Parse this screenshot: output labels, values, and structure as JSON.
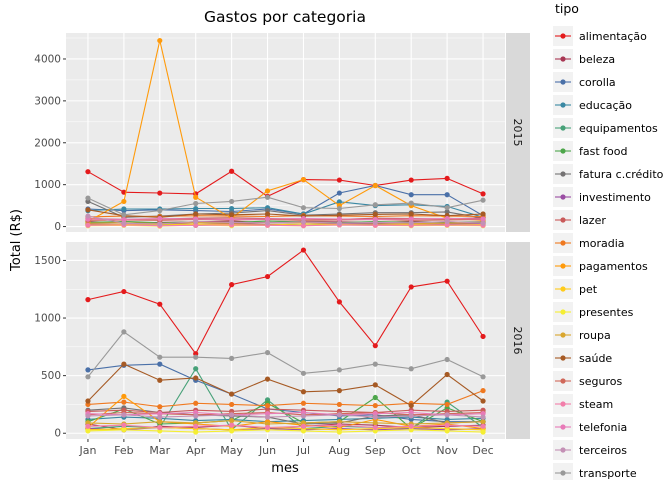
{
  "chart_data": {
    "type": "line",
    "title": "Gastos por categoria",
    "xlabel": "mes",
    "ylabel": "Total (R$)",
    "categories": [
      "Jan",
      "Feb",
      "Mar",
      "Apr",
      "May",
      "Jun",
      "Jul",
      "Aug",
      "Sep",
      "Oct",
      "Nov",
      "Dec"
    ],
    "legend": {
      "title": "tipo",
      "position": "right",
      "entries": [
        {
          "name": "alimentação",
          "color": "#e41a1c"
        },
        {
          "name": "beleza",
          "color": "#a83653"
        },
        {
          "name": "corolla",
          "color": "#4a70a8"
        },
        {
          "name": "educação",
          "color": "#3a88a3"
        },
        {
          "name": "equipamentos",
          "color": "#47a178"
        },
        {
          "name": "fast food",
          "color": "#4da64a"
        },
        {
          "name": "fatura c.crédito",
          "color": "#747273"
        },
        {
          "name": "investimento",
          "color": "#9a4da3"
        },
        {
          "name": "lazer",
          "color": "#c95a5a"
        },
        {
          "name": "moradia",
          "color": "#ef7920"
        },
        {
          "name": "pagamentos",
          "color": "#ff9a0a"
        },
        {
          "name": "pet",
          "color": "#ffcb1a"
        },
        {
          "name": "presentes",
          "color": "#f5ee33"
        },
        {
          "name": "roupa",
          "color": "#d9a62e"
        },
        {
          "name": "saúde",
          "color": "#a65a24"
        },
        {
          "name": "seguros",
          "color": "#d0685a"
        },
        {
          "name": "steam",
          "color": "#f27eaa"
        },
        {
          "name": "telefonia",
          "color": "#e87ab8"
        },
        {
          "name": "terceiros",
          "color": "#c490b5"
        },
        {
          "name": "transporte",
          "color": "#999999"
        }
      ]
    },
    "facets": [
      {
        "label": "2015",
        "ylim": [
          -130,
          4620
        ],
        "yticks": [
          0,
          1000,
          2000,
          3000,
          4000
        ],
        "series": [
          {
            "name": "alimentação",
            "values": [
              1310,
              820,
              800,
              780,
              1320,
              720,
              1120,
              1110,
              980,
              1110,
              1150,
              780
            ]
          },
          {
            "name": "beleza",
            "values": [
              120,
              80,
              100,
              110,
              130,
              90,
              120,
              110,
              100,
              120,
              100,
              110
            ]
          },
          {
            "name": "corolla",
            "values": [
              420,
              380,
              400,
              380,
              360,
              420,
              300,
              800,
              980,
              760,
              760,
              260
            ]
          },
          {
            "name": "educação",
            "values": [
              380,
              420,
              420,
              430,
              430,
              450,
              300,
              590,
              500,
              520,
              480,
              220
            ]
          },
          {
            "name": "equipamentos",
            "values": [
              50,
              40,
              60,
              30,
              50,
              40,
              60,
              40,
              50,
              30,
              50,
              40
            ]
          },
          {
            "name": "fast food",
            "values": [
              100,
              120,
              90,
              110,
              100,
              130,
              110,
              90,
              120,
              100,
              110,
              100
            ]
          },
          {
            "name": "fatura c.crédito",
            "values": [
              600,
              220,
              250,
              300,
              320,
              380,
              270,
              300,
              330,
              330,
              350,
              200
            ]
          },
          {
            "name": "investimento",
            "values": [
              60,
              50,
              80,
              60,
              70,
              50,
              60,
              70,
              60,
              50,
              60,
              70
            ]
          },
          {
            "name": "lazer",
            "values": [
              190,
              170,
              180,
              200,
              210,
              190,
              180,
              170,
              200,
              190,
              180,
              210
            ]
          },
          {
            "name": "moradia",
            "values": [
              230,
              250,
              240,
              260,
              250,
              240,
              260,
              250,
              240,
              260,
              250,
              240
            ]
          },
          {
            "name": "pagamentos",
            "values": [
              120,
              600,
              4440,
              700,
              200,
              850,
              1120,
              500,
              980,
              500,
              200,
              150
            ]
          },
          {
            "name": "pet",
            "values": [
              40,
              50,
              40,
              60,
              50,
              40,
              60,
              50,
              40,
              50,
              40,
              50
            ]
          },
          {
            "name": "presentes",
            "values": [
              20,
              30,
              10,
              40,
              20,
              30,
              20,
              40,
              30,
              20,
              30,
              20
            ]
          },
          {
            "name": "roupa",
            "values": [
              80,
              90,
              70,
              100,
              80,
              90,
              100,
              80,
              90,
              70,
              80,
              90
            ]
          },
          {
            "name": "saúde",
            "values": [
              400,
              260,
              220,
              300,
              280,
              300,
              250,
              270,
              290,
              300,
              260,
              300
            ]
          },
          {
            "name": "seguros",
            "values": [
              150,
              160,
              150,
              170,
              160,
              170,
              150,
              160,
              170,
              150,
              160,
              170
            ]
          },
          {
            "name": "steam",
            "values": [
              30,
              40,
              20,
              30,
              40,
              30,
              20,
              40,
              30,
              30,
              40,
              30
            ]
          },
          {
            "name": "telefonia",
            "values": [
              180,
              170,
              190,
              180,
              170,
              180,
              190,
              180,
              170,
              180,
              190,
              180
            ]
          },
          {
            "name": "terceiros",
            "values": [
              250,
              80,
              60,
              120,
              100,
              90,
              110,
              80,
              100,
              90,
              120,
              80
            ]
          },
          {
            "name": "transporte",
            "values": [
              680,
              280,
              380,
              550,
              600,
              700,
              450,
              430,
              520,
              560,
              450,
              630
            ]
          }
        ]
      },
      {
        "label": "2016",
        "ylim": [
          -50,
          1660
        ],
        "yticks": [
          0,
          500,
          1000,
          1500
        ],
        "series": [
          {
            "name": "alimentação",
            "values": [
              1160,
              1230,
              1120,
              690,
              1290,
              1360,
              1590,
              1140,
              760,
              1270,
              1320,
              840
            ]
          },
          {
            "name": "beleza",
            "values": [
              80,
              30,
              60,
              50,
              70,
              40,
              60,
              80,
              70,
              50,
              60,
              70
            ]
          },
          {
            "name": "corolla",
            "values": [
              550,
              590,
              600,
              460,
              340,
              210,
              180,
              150,
              160,
              120,
              100,
              100
            ]
          },
          {
            "name": "educação",
            "values": [
              120,
              140,
              130,
              110,
              120,
              100,
              110,
              120,
              130,
              140,
              120,
              130
            ]
          },
          {
            "name": "equipamentos",
            "values": [
              40,
              60,
              50,
              560,
              30,
              290,
              40,
              60,
              50,
              40,
              270,
              50
            ]
          },
          {
            "name": "fast food",
            "values": [
              100,
              210,
              80,
              90,
              110,
              260,
              90,
              100,
              310,
              40,
              220,
              100
            ]
          },
          {
            "name": "fatura c.crédito",
            "values": [
              200,
              220,
              180,
              160,
              150,
              140,
              80,
              90,
              150,
              160,
              90,
              100
            ]
          },
          {
            "name": "investimento",
            "values": [
              40,
              30,
              50,
              40,
              30,
              40,
              30,
              40,
              30,
              40,
              30,
              40
            ]
          },
          {
            "name": "lazer",
            "values": [
              190,
              200,
              180,
              200,
              190,
              210,
              200,
              190,
              180,
              200,
              190,
              200
            ]
          },
          {
            "name": "moradia",
            "values": [
              250,
              270,
              230,
              260,
              250,
              240,
              260,
              250,
              240,
              260,
              250,
              370
            ]
          },
          {
            "name": "pagamentos",
            "values": [
              50,
              320,
              100,
              80,
              60,
              100,
              70,
              50,
              120,
              60,
              80,
              40
            ]
          },
          {
            "name": "pet",
            "values": [
              30,
              40,
              50,
              40,
              30,
              50,
              40,
              30,
              40,
              50,
              40,
              30
            ]
          },
          {
            "name": "presentes",
            "values": [
              20,
              30,
              20,
              10,
              20,
              30,
              20,
              10,
              20,
              30,
              20,
              10
            ]
          },
          {
            "name": "roupa",
            "values": [
              90,
              80,
              100,
              90,
              110,
              80,
              90,
              100,
              90,
              80,
              90,
              100
            ]
          },
          {
            "name": "saúde",
            "values": [
              280,
              600,
              460,
              480,
              340,
              470,
              360,
              370,
              420,
              240,
              510,
              280
            ]
          },
          {
            "name": "seguros",
            "values": [
              160,
              180,
              170,
              160,
              170,
              180,
              160,
              170,
              180,
              160,
              170,
              180
            ]
          },
          {
            "name": "steam",
            "values": [
              60,
              70,
              50,
              60,
              70,
              50,
              60,
              70,
              50,
              60,
              70,
              60
            ]
          },
          {
            "name": "telefonia",
            "values": [
              170,
              160,
              170,
              180,
              160,
              170,
              180,
              160,
              170,
              180,
              160,
              170
            ]
          },
          {
            "name": "terceiros",
            "values": [
              150,
              160,
              140,
              150,
              160,
              140,
              150,
              160,
              140,
              150,
              160,
              140
            ]
          },
          {
            "name": "transporte",
            "values": [
              490,
              880,
              660,
              660,
              650,
              700,
              520,
              550,
              600,
              560,
              640,
              490
            ]
          }
        ]
      }
    ]
  }
}
